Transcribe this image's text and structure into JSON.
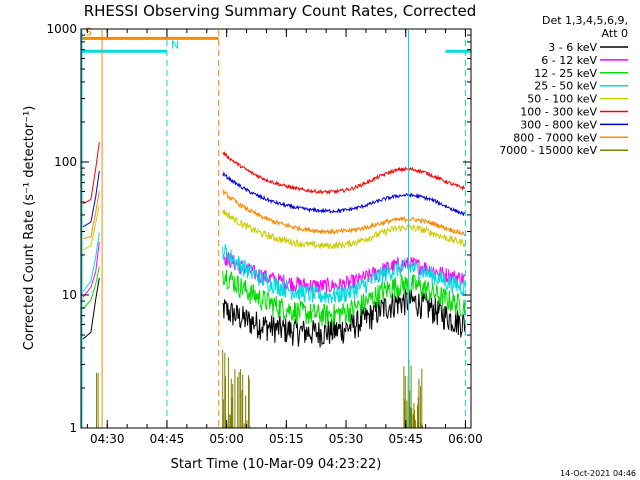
{
  "chart_data": {
    "type": "line",
    "title": "RHESSI Observing Summary Count Rates, Corrected",
    "xlabel": "Start Time (10-Mar-09 04:23:22)",
    "ylabel": "Corrected Count Rate (s⁻¹ detector⁻¹)",
    "yscale": "log",
    "ylim": [
      1,
      1000
    ],
    "xlim_minutes": [
      0,
      98
    ],
    "x_ticks": [
      {
        "label": "04:30",
        "minutes": 6.6
      },
      {
        "label": "04:45",
        "minutes": 21.6
      },
      {
        "label": "05:00",
        "minutes": 36.6
      },
      {
        "label": "05:15",
        "minutes": 51.6
      },
      {
        "label": "05:30",
        "minutes": 66.6
      },
      {
        "label": "05:45",
        "minutes": 81.6
      },
      {
        "label": "06:00",
        "minutes": 96.6
      }
    ],
    "y_ticks": [
      {
        "label": "1",
        "value": 1
      },
      {
        "label": "10",
        "value": 10
      },
      {
        "label": "100",
        "value": 100
      },
      {
        "label": "1000",
        "value": 1000
      }
    ],
    "legend_header": [
      "Det 1,3,4,5,6,9,",
      "Att 0"
    ],
    "series": [
      {
        "name": "3 - 6 keV",
        "color": "#000000",
        "pre": [
          [
            0.5,
            4.5
          ],
          [
            2.5,
            5.5
          ],
          [
            3.7,
            9
          ],
          [
            4.6,
            12
          ]
        ],
        "start": 8,
        "trough": 5,
        "mid_peak": 9,
        "end": 5.5,
        "noise": 0.12
      },
      {
        "name": "6 - 12 keV",
        "color": "#ff00ff",
        "pre": [
          [
            0.5,
            10
          ],
          [
            2.5,
            11
          ],
          [
            3.7,
            16
          ],
          [
            4.6,
            26
          ]
        ],
        "start": 20,
        "trough": 11,
        "mid_peak": 17,
        "end": 12.5,
        "noise": 0.07
      },
      {
        "name": "12 - 25 keV",
        "color": "#00dd00",
        "pre": [
          [
            0.5,
            7.5
          ],
          [
            2.5,
            8.5
          ],
          [
            3.7,
            12
          ],
          [
            4.6,
            18
          ]
        ],
        "start": 15,
        "trough": 6.5,
        "mid_peak": 12,
        "end": 7.5,
        "noise": 0.1
      },
      {
        "name": "25 - 50 keV",
        "color": "#00dddd",
        "pre": [
          [
            0.5,
            11.5
          ],
          [
            2.5,
            12.5
          ],
          [
            3.7,
            18
          ],
          [
            4.6,
            28
          ]
        ],
        "start": 22,
        "trough": 9,
        "mid_peak": 16,
        "end": 10.5,
        "noise": 0.08
      },
      {
        "name": "50 - 100 keV",
        "color": "#cccc00",
        "pre": [
          [
            0.5,
            22
          ],
          [
            2.5,
            24
          ],
          [
            3.7,
            34
          ],
          [
            4.6,
            48
          ]
        ],
        "start": 43,
        "trough": 22,
        "mid_peak": 32,
        "end": 23,
        "noise": 0.03
      },
      {
        "name": "100 - 300 keV",
        "color": "#ff0000",
        "pre": [
          [
            0.5,
            48
          ],
          [
            2.5,
            52
          ],
          [
            3.7,
            90
          ],
          [
            4.6,
            140
          ]
        ],
        "start": 118,
        "trough": 55,
        "mid_peak": 88,
        "end": 58,
        "noise": 0.015
      },
      {
        "name": "300 - 800 keV",
        "color": "#0000dd",
        "pre": [
          [
            0.5,
            33
          ],
          [
            2.5,
            35
          ],
          [
            3.7,
            55
          ],
          [
            4.6,
            85
          ]
        ],
        "start": 82,
        "trough": 40,
        "mid_peak": 56,
        "end": 37,
        "noise": 0.015
      },
      {
        "name": "800 - 7000 keV",
        "color": "#ff8800",
        "pre": [
          [
            0.5,
            26
          ],
          [
            2.5,
            28
          ],
          [
            3.7,
            42
          ],
          [
            4.6,
            60
          ]
        ],
        "start": 60,
        "trough": 28,
        "mid_peak": 37,
        "end": 27,
        "noise": 0.02
      },
      {
        "name": "7000 - 15000 keV",
        "color": "#808000",
        "pre": [
          [
            3.9,
            1.0
          ],
          [
            4.3,
            2.6
          ]
        ],
        "start": 3,
        "trough": 1,
        "mid_peak": 2.6,
        "end": 1,
        "noise": 0.0
      }
    ],
    "intervals": [
      {
        "label": "S",
        "color": "#ff8800",
        "from": 0,
        "to": 34.6,
        "value": 850
      },
      {
        "label": "N",
        "color": "#00dddd",
        "from": 0,
        "to": 21.6,
        "value": 680
      },
      {
        "label": "",
        "color": "#00dddd",
        "from": 91.6,
        "to": 98,
        "value": 680
      }
    ],
    "markers": [
      {
        "color": "#ff8800",
        "minutes": 5.3,
        "style": "solid"
      },
      {
        "color": "#ff8800",
        "minutes": 34.6,
        "style": "dashed"
      },
      {
        "color": "#00dddd",
        "minutes": 21.6,
        "style": "dashed"
      },
      {
        "color": "#00dddd",
        "minutes": 96.6,
        "style": "dashed"
      },
      {
        "color": "#00dddd",
        "minutes": 82.3,
        "style": "solid"
      }
    ],
    "stamp": "14-Oct-2021 04:46"
  }
}
